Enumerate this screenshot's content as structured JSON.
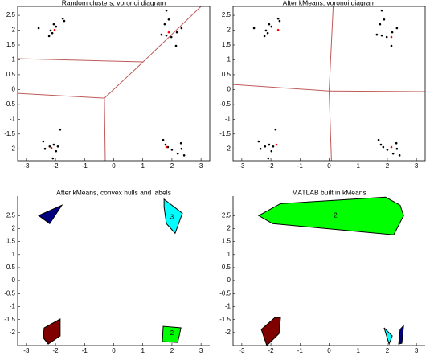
{
  "chart_data": [
    {
      "type": "scatter",
      "title": "Random clusters, voronoi diagram",
      "xlim": [
        -3.3,
        3.3
      ],
      "ylim": [
        -2.4,
        2.8
      ],
      "xticks": [
        -3,
        -2,
        -1,
        0,
        1,
        2,
        3
      ],
      "yticks": [
        -2,
        -1.5,
        -1,
        -0.5,
        0,
        0.5,
        1,
        1.5,
        2,
        2.5
      ],
      "box": true,
      "series": [
        {
          "type": "scatter",
          "color": "#000000",
          "x": [
            -2.58,
            -2.06,
            -1.98,
            -2.17,
            -2.11,
            -2.22,
            -1.75,
            -1.7,
            1.81,
            1.89,
            1.64,
            1.81,
            1.98,
            2.17,
            2.33,
            2.14,
            1.75,
            -2.42,
            -2.2,
            -2.36,
            -2.06,
            -1.92,
            -1.84,
            -1.98,
            -2.09,
            1.7,
            1.86,
            2.0,
            2.31,
            2.33,
            2.2,
            2.42,
            1.78
          ],
          "values": [
            2.07,
            2.2,
            2.12,
            1.99,
            1.9,
            1.8,
            2.39,
            2.31,
            2.66,
            2.36,
            1.85,
            1.82,
            1.77,
            1.93,
            2.07,
            1.47,
            2.2,
            -1.75,
            -1.92,
            -2.0,
            -1.86,
            -1.92,
            -1.35,
            -2.08,
            -2.32,
            -1.7,
            -1.94,
            -2.03,
            -1.81,
            -2.0,
            -2.16,
            -2.22,
            -1.86
          ]
        },
        {
          "type": "scatter",
          "color": "#ff0000",
          "x": [
            -2.03,
            1.89,
            -2.14,
            1.81
          ],
          "values": [
            2.01,
            1.93,
            -1.97,
            -1.94
          ]
        },
        {
          "type": "line",
          "color": "#c05a5a",
          "x": [
            -3.3,
            1.01
          ],
          "values": [
            1.04,
            0.93
          ]
        },
        {
          "type": "line",
          "color": "#c05a5a",
          "x": [
            1.01,
            3.0
          ],
          "values": [
            0.93,
            2.8
          ]
        },
        {
          "type": "line",
          "color": "#c05a5a",
          "x": [
            1.01,
            -0.32
          ],
          "values": [
            0.93,
            -0.29
          ]
        },
        {
          "type": "line",
          "color": "#c05a5a",
          "x": [
            -0.32,
            -3.3
          ],
          "values": [
            -0.29,
            -0.13
          ]
        },
        {
          "type": "line",
          "color": "#c05a5a",
          "x": [
            -0.32,
            -0.29
          ],
          "values": [
            -0.29,
            -2.4
          ]
        }
      ]
    },
    {
      "type": "scatter",
      "title": "After kMeans, voronoi diagram",
      "xlim": [
        -3.3,
        3.3
      ],
      "ylim": [
        -2.4,
        2.8
      ],
      "xticks": [
        -3,
        -2,
        -1,
        0,
        1,
        2,
        3
      ],
      "yticks": [
        -2,
        -1.5,
        -1,
        -0.5,
        0,
        0.5,
        1,
        1.5,
        2,
        2.5
      ],
      "box": true,
      "series": [
        {
          "type": "scatter",
          "color": "#000000",
          "x": [
            -2.58,
            -2.06,
            -1.98,
            -2.17,
            -2.11,
            -2.22,
            -1.75,
            -1.7,
            1.81,
            1.89,
            1.64,
            1.81,
            1.98,
            2.17,
            2.33,
            2.14,
            1.75,
            -2.42,
            -2.2,
            -2.36,
            -2.06,
            -1.92,
            -1.84,
            -1.98,
            -2.09,
            1.7,
            1.86,
            2.0,
            2.31,
            2.33,
            2.2,
            2.42,
            1.78
          ],
          "values": [
            2.07,
            2.2,
            2.12,
            1.99,
            1.9,
            1.8,
            2.39,
            2.31,
            2.66,
            2.36,
            1.85,
            1.82,
            1.77,
            1.93,
            2.07,
            1.47,
            2.2,
            -1.75,
            -1.92,
            -2.0,
            -1.86,
            -1.92,
            -1.35,
            -2.08,
            -2.32,
            -1.7,
            -1.94,
            -2.03,
            -1.81,
            -2.0,
            -2.16,
            -2.22,
            -1.86
          ]
        },
        {
          "type": "scatter",
          "color": "#ff0000",
          "x": [
            -1.75,
            2.14,
            -1.81,
            2.14
          ],
          "values": [
            2.01,
            1.77,
            -1.86,
            -1.94
          ]
        },
        {
          "type": "line",
          "color": "#c05a5a",
          "x": [
            -3.33,
            0.0
          ],
          "values": [
            0.17,
            -0.05
          ]
        },
        {
          "type": "line",
          "color": "#c05a5a",
          "x": [
            0.0,
            0.14
          ],
          "values": [
            -0.05,
            2.8
          ]
        },
        {
          "type": "line",
          "color": "#c05a5a",
          "x": [
            0.0,
            0.08
          ],
          "values": [
            -0.05,
            -2.4
          ]
        },
        {
          "type": "line",
          "color": "#c05a5a",
          "x": [
            0.0,
            3.3
          ],
          "values": [
            -0.05,
            -0.07
          ]
        }
      ]
    },
    {
      "type": "scatter",
      "title": "After kMeans, convex hulls and labels",
      "xlim": [
        -3.3,
        3.3
      ],
      "ylim": [
        -2.5,
        3.25
      ],
      "xticks": [
        -3,
        -2,
        -1,
        0,
        1,
        2,
        3
      ],
      "yticks": [
        -2,
        -1.5,
        -1,
        -0.5,
        0,
        0.5,
        1,
        1.5,
        2,
        2.5
      ],
      "box": false,
      "series": [
        {
          "type": "polygon",
          "color": "#000080",
          "x": [
            -2.58,
            -1.78,
            -2.2
          ],
          "values": [
            2.5,
            2.9,
            2.19
          ]
        },
        {
          "type": "polygon",
          "color": "#00ffff",
          "x": [
            1.73,
            2.36,
            2.11,
            1.81,
            1.73
          ],
          "values": [
            3.13,
            2.59,
            1.82,
            2.19,
            2.83
          ]
        },
        {
          "type": "polygon",
          "color": "#800000",
          "x": [
            -2.39,
            -1.84,
            -1.84,
            -2.25,
            -2.42
          ],
          "values": [
            -1.82,
            -1.48,
            -2.13,
            -2.44,
            -2.2
          ]
        },
        {
          "type": "polygon",
          "color": "#00ff00",
          "x": [
            1.7,
            2.31,
            2.2,
            1.67
          ],
          "values": [
            -1.76,
            -1.82,
            -2.38,
            -2.35
          ]
        }
      ],
      "annotations": [
        {
          "text": "3",
          "x": 2.0,
          "y": 2.44
        },
        {
          "text": "2",
          "x": 2.0,
          "y": -2.04
        }
      ]
    },
    {
      "type": "scatter",
      "title": "MATLAB built in kMeans",
      "xlim": [
        -3.3,
        3.3
      ],
      "ylim": [
        -2.5,
        3.25
      ],
      "xticks": [
        -3,
        -2,
        -1,
        0,
        1,
        2,
        3
      ],
      "yticks": [
        -2,
        -1.5,
        -1,
        -0.5,
        0,
        0.5,
        1,
        1.5,
        2,
        2.5
      ],
      "box": false,
      "series": [
        {
          "type": "polygon",
          "color": "#00ff00",
          "x": [
            -2.42,
            -1.67,
            1.94,
            2.44,
            2.56,
            2.22,
            -1.94
          ],
          "values": [
            2.5,
            2.96,
            3.21,
            2.9,
            2.5,
            1.76,
            2.19
          ]
        },
        {
          "type": "polygon",
          "color": "#800000",
          "x": [
            -2.33,
            -1.86,
            -1.67,
            -1.72,
            -2.14
          ],
          "values": [
            -1.88,
            -1.42,
            -1.42,
            -2.04,
            -2.5
          ]
        },
        {
          "type": "polygon",
          "color": "#00ffff",
          "x": [
            1.89,
            2.17,
            2.06
          ],
          "values": [
            -1.82,
            -2.13,
            -2.44
          ]
        },
        {
          "type": "polygon",
          "color": "#000080",
          "x": [
            2.44,
            2.56,
            2.5,
            2.39
          ],
          "values": [
            -1.88,
            -1.73,
            -2.41,
            -2.44
          ]
        }
      ],
      "annotations": [
        {
          "text": "2",
          "x": 0.22,
          "y": 2.5
        }
      ]
    }
  ]
}
